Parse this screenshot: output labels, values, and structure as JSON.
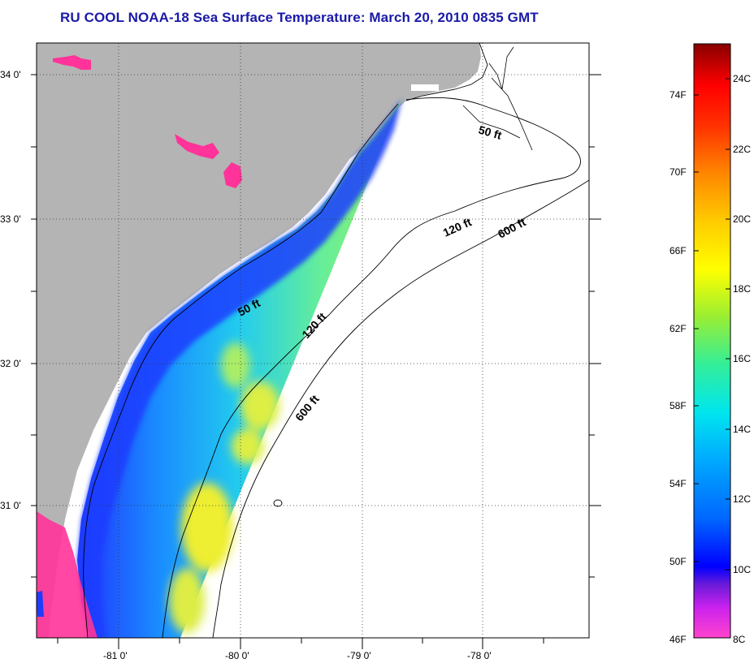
{
  "title": "RU COOL  NOAA-18  Sea Surface Temperature:  March 20, 2010 0835 GMT",
  "map": {
    "lat_ticks": [
      "34 0'",
      "33 0'",
      "32 0'",
      "31 0'"
    ],
    "lon_ticks": [
      "-81 0'",
      "-80 0'",
      "-79 0'",
      "-78 0'"
    ],
    "contour_labels": [
      "50 ft",
      "120 ft",
      "600 ft",
      "50 ft",
      "120 ft",
      "600 ft"
    ]
  },
  "colorbar": {
    "fahrenheit_labels": [
      "74F",
      "70F",
      "66F",
      "62F",
      "58F",
      "54F",
      "50F",
      "46F"
    ],
    "celsius_labels": [
      "24C",
      "22C",
      "20C",
      "18C",
      "16C",
      "14C",
      "12C",
      "10C",
      "8C"
    ]
  },
  "colors": {
    "land": "#b4b4b4",
    "title": "#1a1aa8",
    "no_data_water": "#ffffff",
    "cold_pink": "#ff3399"
  }
}
